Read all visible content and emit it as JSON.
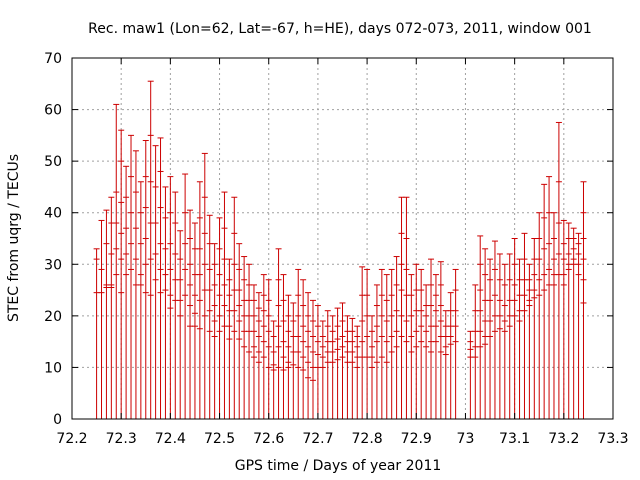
{
  "chart_data": {
    "type": "scatter",
    "title": "Rec. maw1 (Lon=62, Lat=-67, h=HE), days 072-073, 2011, window 001",
    "xlabel": "GPS time / Days of year 2011",
    "ylabel": "STEC from uqrg / TECUs",
    "xlim": [
      72.2,
      73.3
    ],
    "ylim": [
      0,
      70
    ],
    "xticks": [
      "72.2",
      "72.3",
      "72.4",
      "72.5",
      "72.6",
      "72.7",
      "72.8",
      "72.9",
      "73",
      "73.1",
      "73.2",
      "73.3"
    ],
    "yticks": [
      "0",
      "10",
      "20",
      "30",
      "40",
      "50",
      "60",
      "70"
    ],
    "grid": true,
    "color": "#cc0000",
    "note": "Each vertical impulse spans 0 up to the highest sample in its epoch; short horizontal marks are the individual STEC samples.",
    "epoch_spacing_days": 0.01,
    "x": [
      72.25,
      72.26,
      72.27,
      72.28,
      72.29,
      72.3,
      72.31,
      72.32,
      72.33,
      72.34,
      72.35,
      72.36,
      72.37,
      72.38,
      72.39,
      72.4,
      72.41,
      72.42,
      72.43,
      72.44,
      72.45,
      72.46,
      72.47,
      72.48,
      72.49,
      72.5,
      72.51,
      72.52,
      72.53,
      72.54,
      72.55,
      72.56,
      72.57,
      72.58,
      72.59,
      72.6,
      72.61,
      72.62,
      72.63,
      72.64,
      72.65,
      72.66,
      72.67,
      72.68,
      72.69,
      72.7,
      72.71,
      72.72,
      72.73,
      72.74,
      72.75,
      72.76,
      72.77,
      72.78,
      72.79,
      72.8,
      72.81,
      72.82,
      72.83,
      72.84,
      72.85,
      72.86,
      72.87,
      72.88,
      72.89,
      72.9,
      72.91,
      72.92,
      72.93,
      72.94,
      72.95,
      72.96,
      72.97,
      72.98,
      73.01,
      73.02,
      73.03,
      73.04,
      73.05,
      73.06,
      73.07,
      73.08,
      73.09,
      73.1,
      73.11,
      73.12,
      73.13,
      73.14,
      73.15,
      73.16,
      73.17,
      73.18,
      73.19,
      73.2,
      73.21,
      73.22,
      73.23,
      73.24
    ],
    "samples": [
      [
        33,
        31,
        24.5
      ],
      [
        38.5,
        29,
        24.5
      ],
      [
        40.5,
        34,
        26,
        25.5
      ],
      [
        43,
        38,
        32,
        26,
        25.5
      ],
      [
        61,
        44,
        38,
        33,
        28
      ],
      [
        56,
        50,
        42,
        36,
        31,
        24.5
      ],
      [
        49,
        43,
        37,
        32,
        28
      ],
      [
        55,
        47,
        40,
        34,
        29
      ],
      [
        52,
        44,
        37,
        31,
        26
      ],
      [
        46,
        40,
        34,
        28,
        26
      ],
      [
        54,
        47,
        41,
        35,
        30,
        24.5
      ],
      [
        65.5,
        55,
        46,
        38,
        31,
        24
      ],
      [
        53,
        45,
        38,
        32,
        27
      ],
      [
        54.5,
        48,
        41,
        34,
        29,
        24.5
      ],
      [
        45,
        39,
        33,
        28,
        25
      ],
      [
        47,
        40,
        34,
        29,
        24,
        21.5
      ],
      [
        44,
        38,
        32,
        27,
        23
      ],
      [
        36.5,
        31,
        27,
        23,
        20
      ],
      [
        47.5,
        40,
        34,
        29,
        24
      ],
      [
        40.5,
        35,
        30,
        26,
        22,
        18
      ],
      [
        38,
        33,
        28,
        24,
        20.5,
        18
      ],
      [
        46,
        39,
        33,
        28,
        23,
        17.5
      ],
      [
        51.5,
        43,
        36,
        30,
        25,
        20
      ],
      [
        39.5,
        34,
        29,
        25,
        21,
        17
      ],
      [
        34,
        30,
        26,
        22,
        19,
        16
      ],
      [
        39,
        33,
        28,
        24,
        20,
        17
      ],
      [
        44,
        37,
        31,
        26,
        22,
        18
      ],
      [
        31,
        27,
        24,
        21,
        18,
        15.5
      ],
      [
        43,
        36,
        30,
        25,
        21,
        17
      ],
      [
        34,
        29,
        25,
        22,
        19,
        15.5
      ],
      [
        31.5,
        27,
        23,
        20,
        17,
        14
      ],
      [
        30,
        26,
        23,
        20,
        17,
        13
      ],
      [
        26,
        23,
        20,
        17,
        14,
        12
      ],
      [
        24.5,
        21.5,
        19,
        16,
        13,
        11
      ],
      [
        28,
        24,
        21,
        18,
        15,
        12
      ],
      [
        27,
        23,
        20,
        17,
        14,
        10
      ],
      [
        19,
        16,
        13,
        10.5,
        9.5
      ],
      [
        33,
        27,
        22,
        18,
        14,
        10
      ],
      [
        28,
        23,
        19,
        15,
        12,
        9.5
      ],
      [
        24,
        20,
        17,
        14,
        11,
        10
      ],
      [
        22.5,
        19,
        16,
        13,
        10.5
      ],
      [
        29,
        24,
        20,
        16,
        13,
        10
      ],
      [
        27,
        22,
        18,
        15,
        12,
        9.5
      ],
      [
        24.5,
        20,
        17,
        14,
        11,
        8
      ],
      [
        23,
        19,
        16,
        13,
        10,
        7.5
      ],
      [
        22,
        18,
        15,
        12.5,
        10
      ],
      [
        19,
        16,
        14,
        12,
        10
      ],
      [
        21,
        18,
        15,
        13,
        11
      ],
      [
        20,
        17,
        15,
        13,
        11
      ],
      [
        21.5,
        18,
        15.5,
        13.5,
        11.5
      ],
      [
        22.5,
        19,
        16,
        14,
        12
      ],
      [
        20,
        17,
        15,
        13,
        11
      ],
      [
        19.5,
        17,
        15,
        13,
        11
      ],
      [
        18,
        16,
        14,
        12,
        10
      ],
      [
        29.5,
        24,
        19,
        15,
        12
      ],
      [
        29,
        24,
        20,
        16,
        12
      ],
      [
        20,
        17,
        14,
        12,
        10
      ],
      [
        26,
        22,
        18,
        15,
        11
      ],
      [
        29,
        24,
        20,
        16,
        12
      ],
      [
        28,
        23,
        19,
        15,
        11
      ],
      [
        29,
        24,
        20,
        16,
        13
      ],
      [
        31.5,
        26,
        21,
        17,
        14
      ],
      [
        43,
        36,
        30,
        25,
        20,
        16
      ],
      [
        43,
        35,
        29,
        24,
        19,
        15
      ],
      [
        28,
        24,
        20,
        16,
        13
      ],
      [
        30,
        25,
        21,
        17,
        14
      ],
      [
        29,
        25,
        21,
        18,
        15
      ],
      [
        26,
        22,
        20,
        17,
        14
      ],
      [
        31,
        26,
        22,
        18,
        15,
        13
      ],
      [
        28,
        24,
        21,
        18,
        15
      ],
      [
        30.5,
        26,
        22,
        19,
        16,
        13
      ],
      [
        21,
        18,
        16,
        14,
        12.5
      ],
      [
        24.5,
        21,
        18,
        16,
        14.5
      ],
      [
        29,
        25,
        21,
        18,
        15
      ],
      [
        17,
        15,
        13.5,
        12
      ],
      [
        26,
        21,
        17,
        14,
        12
      ],
      [
        35.5,
        30,
        25,
        21,
        17,
        14
      ],
      [
        33,
        28,
        23,
        19,
        16,
        14.5
      ],
      [
        31,
        27,
        23,
        19,
        16
      ],
      [
        34.5,
        29,
        24,
        20,
        17
      ],
      [
        32,
        27,
        23,
        20,
        17.5
      ],
      [
        30,
        26,
        22,
        19,
        17
      ],
      [
        32,
        27,
        23,
        20,
        18
      ],
      [
        35,
        30,
        26,
        23,
        20
      ],
      [
        31,
        27,
        24,
        21,
        19
      ],
      [
        36,
        31,
        27,
        24,
        21
      ],
      [
        30,
        27,
        25,
        23,
        22
      ],
      [
        35,
        31,
        28,
        25,
        23.5
      ],
      [
        40,
        35,
        31,
        27,
        24
      ],
      [
        45.5,
        39,
        33,
        28,
        25
      ],
      [
        47,
        40,
        34,
        29,
        26
      ],
      [
        40,
        35,
        31,
        28,
        26
      ],
      [
        57.5,
        46,
        38,
        32,
        28
      ],
      [
        38.5,
        34,
        31,
        28,
        26
      ],
      [
        38,
        35,
        32,
        30,
        29
      ],
      [
        37,
        35,
        33,
        31,
        30
      ],
      [
        36,
        34,
        32,
        30,
        28
      ],
      [
        46,
        40,
        35,
        31,
        27,
        22.5
      ]
    ]
  }
}
